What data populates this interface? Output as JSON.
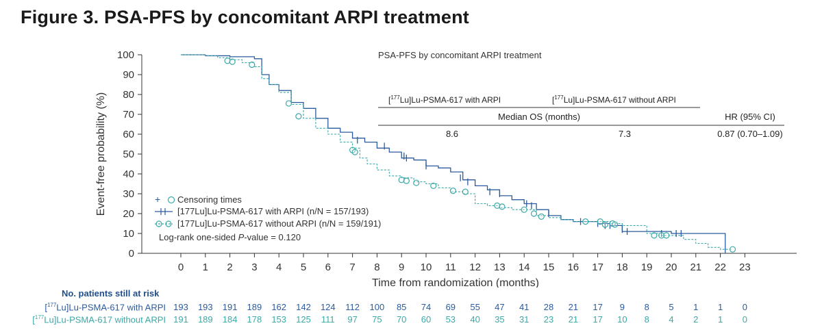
{
  "figure_title": "Figure 3. PSA-PFS by concomitant ARPI treatment",
  "colors": {
    "with": "#2b5b9e",
    "without": "#3aa9a8"
  },
  "chart_data": {
    "type": "line",
    "title": "PSA-PFS by concomitant ARPI treatment",
    "xlabel": "Time from randomization (months)",
    "ylabel": "Event-free probability (%)",
    "xlim": [
      0,
      23
    ],
    "ylim": [
      0,
      100
    ],
    "x_ticks": [
      0,
      1,
      2,
      3,
      4,
      5,
      6,
      7,
      8,
      9,
      10,
      11,
      12,
      13,
      14,
      15,
      16,
      17,
      18,
      19,
      20,
      21,
      22,
      23
    ],
    "y_ticks": [
      0,
      10,
      20,
      30,
      40,
      50,
      60,
      70,
      80,
      90,
      100
    ],
    "series": [
      {
        "name": "[177Lu]Lu-PSMA-617 with ARPI (n/N = 157/193)",
        "line_style": "solid",
        "censor_marker": "plus",
        "x": [
          0,
          1,
          2,
          2.6,
          3,
          3.3,
          3.6,
          4,
          4.5,
          5,
          5.5,
          6,
          6.5,
          7,
          7.5,
          8,
          8.5,
          9,
          9.5,
          10,
          10.5,
          11,
          11.5,
          12,
          12.5,
          13,
          13.5,
          14,
          14.5,
          15,
          15.5,
          16,
          16.5,
          17,
          17.5,
          18,
          19,
          20,
          21,
          22,
          22.2
        ],
        "y": [
          100,
          99.5,
          99,
          99,
          98,
          90,
          85,
          82,
          76,
          73,
          68,
          63,
          61,
          58,
          56,
          53,
          51,
          48,
          47,
          44,
          43,
          41,
          37,
          34,
          32,
          29,
          27,
          25,
          22,
          19,
          17,
          16,
          16,
          15,
          14,
          11,
          11,
          10,
          10,
          10,
          0
        ],
        "censor_x": [
          7.2,
          8.3,
          9.1,
          9.2,
          10,
          11.4,
          11.7,
          12.6,
          13.0,
          14.1,
          14.3,
          15.0,
          16.3,
          17.0,
          17.3,
          17.5,
          18.0,
          18.2,
          19.6,
          20.2,
          20.4
        ],
        "censor_y": [
          57,
          54,
          49,
          48,
          44,
          38,
          36,
          31,
          30,
          25,
          24,
          20,
          16,
          15,
          14,
          14,
          12,
          11,
          10,
          10,
          10
        ]
      },
      {
        "name": "[177Lu]Lu-PSMA-617 without ARPI (n/N = 159/191)",
        "line_style": "dashed",
        "censor_marker": "circle",
        "x": [
          0,
          1,
          1.5,
          2,
          2.5,
          3,
          3.3,
          3.6,
          4,
          4.5,
          5,
          5.5,
          6,
          6.5,
          7,
          7.3,
          7.6,
          8,
          8.5,
          9,
          9.5,
          10,
          10.5,
          11,
          11.5,
          12,
          12.5,
          13,
          13.5,
          14,
          14.5,
          15,
          15.5,
          16,
          16.5,
          17,
          17.5,
          18,
          19,
          19.5,
          20,
          20.5,
          21,
          21.5,
          22,
          22.5
        ],
        "y": [
          100,
          99.5,
          98.5,
          97.5,
          96,
          94,
          88,
          85,
          81,
          75,
          68,
          63,
          60,
          56,
          53,
          48,
          45,
          42,
          39,
          38,
          36,
          35,
          33,
          31,
          30,
          25,
          24,
          23,
          22,
          22,
          19,
          18,
          17,
          16,
          16,
          16,
          15,
          14,
          10,
          9,
          9,
          7,
          5,
          3,
          2,
          2
        ],
        "censor_x": [
          1.9,
          2.1,
          2.9,
          4.4,
          4.8,
          7.0,
          7.1,
          9.0,
          9.2,
          9.6,
          10.3,
          11.1,
          11.6,
          12.9,
          13.1,
          14.0,
          14.4,
          14.7,
          16.5,
          17.1,
          17.3,
          17.6,
          17.7,
          19.3,
          19.6,
          19.8,
          22.5
        ],
        "censor_y": [
          97,
          96.5,
          95,
          75.5,
          69,
          52,
          51,
          37,
          36.5,
          35.5,
          34,
          31.5,
          31,
          24,
          23.5,
          22,
          20,
          18.5,
          16,
          16,
          14.5,
          15,
          14.5,
          9,
          9,
          9,
          2
        ]
      }
    ],
    "legend": {
      "position": "bottom-left",
      "censoring_label": "Censoring times",
      "logrank_prefix": "Log-rank one-sided ",
      "logrank_p": "P",
      "logrank_suffix": "-value = 0.120"
    },
    "inset_table": {
      "col1_sup": "177",
      "col1_pre": "[",
      "col1_post": "Lu]Lu-PSMA-617 with ARPI",
      "col2_sup": "177",
      "col2_pre": "[",
      "col2_post": "Lu]Lu-PSMA-617 without ARPI",
      "median_header": "Median OS (months)",
      "hr_header": "HR (95% CI)",
      "median_with": "8.6",
      "median_without": "7.3",
      "hr_value": "0.87 (0.70–1.09)"
    },
    "risk_table": {
      "header": "No. patients still at risk",
      "rows": [
        {
          "pre": "[",
          "sup": "177",
          "post": "Lu]Lu-PSMA-617 with ARPI",
          "values": [
            "193",
            "193",
            "191",
            "189",
            "162",
            "142",
            "124",
            "112",
            "100",
            "85",
            "74",
            "69",
            "55",
            "47",
            "41",
            "28",
            "21",
            "17",
            "9",
            "8",
            "5",
            "1",
            "1",
            "0"
          ]
        },
        {
          "pre": "[",
          "sup": "177",
          "post": "Lu]Lu-PSMA-617 without ARPI",
          "values": [
            "191",
            "189",
            "184",
            "178",
            "153",
            "125",
            "111",
            "97",
            "75",
            "70",
            "60",
            "53",
            "40",
            "35",
            "31",
            "23",
            "21",
            "17",
            "10",
            "8",
            "4",
            "2",
            "1",
            "0"
          ]
        }
      ]
    }
  }
}
